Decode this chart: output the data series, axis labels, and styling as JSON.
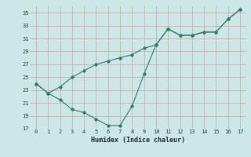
{
  "xlabel": "Humidex (Indice chaleur)",
  "background_color": "#cce8e6",
  "grid_color": "#aacfcc",
  "line_color": "#2a7a6a",
  "x_line1": [
    0,
    1,
    2,
    3,
    4,
    5,
    6,
    7,
    8,
    9,
    10,
    11,
    12,
    13,
    14,
    15,
    16,
    17
  ],
  "y_line1": [
    24.0,
    22.5,
    21.5,
    20.0,
    19.5,
    18.5,
    17.5,
    17.5,
    20.5,
    25.5,
    30.0,
    32.5,
    31.5,
    31.5,
    32.0,
    32.0,
    34.0,
    35.5
  ],
  "x_line2": [
    0,
    1,
    2,
    3,
    4,
    5,
    6,
    7,
    8,
    9,
    10,
    11,
    12,
    13,
    14,
    15,
    16,
    17
  ],
  "y_line2": [
    24.0,
    22.5,
    23.5,
    25.0,
    26.0,
    27.0,
    27.5,
    28.0,
    28.5,
    29.5,
    30.0,
    32.5,
    31.5,
    31.5,
    32.0,
    32.0,
    34.0,
    35.5
  ],
  "ylim": [
    17,
    36
  ],
  "xlim": [
    -0.5,
    17.5
  ],
  "yticks": [
    17,
    19,
    21,
    23,
    25,
    27,
    29,
    31,
    33,
    35
  ],
  "xticks": [
    0,
    1,
    2,
    3,
    4,
    5,
    6,
    7,
    8,
    9,
    10,
    11,
    12,
    13,
    14,
    15,
    16,
    17
  ]
}
